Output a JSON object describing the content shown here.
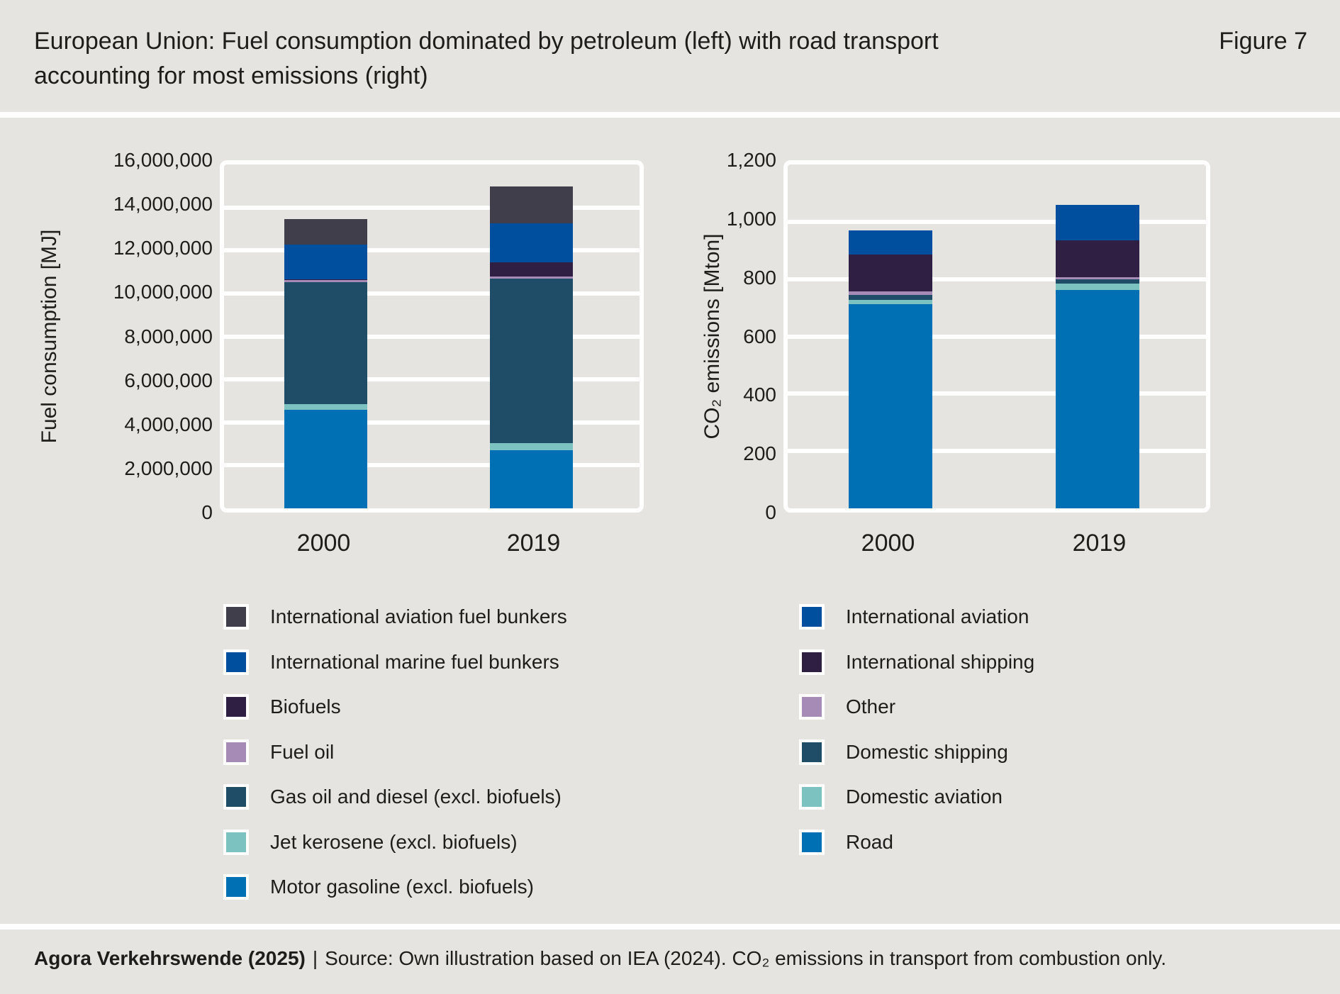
{
  "header": {
    "title": "European Union: Fuel consumption dominated by petroleum (left) with road transport\naccounting for most emissions (right)",
    "figure_label": "Figure 7"
  },
  "footer": {
    "brand": "Agora Verkehrswende (2025)",
    "divider": "|",
    "source": "Source: Own illustration based on IEA (2024). CO₂ emissions in transport from combustion only."
  },
  "colors": {
    "background": "#e5e4e0",
    "text": "#1d1d1b",
    "gridline": "#ffffff"
  },
  "chart_data": [
    {
      "type": "bar",
      "stacked": true,
      "title": "",
      "xlabel": "",
      "ylabel": "Fuel consumption [MJ]",
      "categories": [
        "2000",
        "2019"
      ],
      "ylim": [
        0,
        16000000
      ],
      "grid": true,
      "legend_position": "bottom",
      "ytick_values": [
        0,
        2000000,
        4000000,
        6000000,
        8000000,
        10000000,
        12000000,
        14000000,
        16000000
      ],
      "ytick_labels": [
        "0",
        "2,000,000",
        "4,000,000",
        "6,000,000",
        "8,000,000",
        "10,000,000",
        "12,000,000",
        "14,000,000",
        "16,000,000"
      ],
      "series": [
        {
          "name": "Motor gasoline (excl. biofuels)",
          "color": "#0070b5",
          "values": [
            4570000,
            2710000
          ]
        },
        {
          "name": "Jet kerosene (excl. biofuels)",
          "color": "#7cc2c0",
          "values": [
            290000,
            330000
          ]
        },
        {
          "name": "Gas oil and diesel (excl. biofuels)",
          "color": "#1f4c66",
          "values": [
            5660000,
            7660000
          ]
        },
        {
          "name": "Fuel oil",
          "color": "#a58bb5",
          "values": [
            100000,
            80000
          ]
        },
        {
          "name": "Biofuels",
          "color": "#2f1f42",
          "values": [
            30000,
            680000
          ]
        },
        {
          "name": "International marine fuel bunkers",
          "color": "#004f9e",
          "values": [
            1610000,
            1800000
          ]
        },
        {
          "name": "International aviation fuel bunkers",
          "color": "#413e4c",
          "values": [
            1190000,
            1720000
          ]
        }
      ],
      "totals": [
        13450000,
        14980000
      ]
    },
    {
      "type": "bar",
      "stacked": true,
      "title": "",
      "xlabel": "",
      "ylabel": "CO₂ emissions [Mton]",
      "categories": [
        "2000",
        "2019"
      ],
      "ylim": [
        0,
        1200
      ],
      "grid": true,
      "legend_position": "bottom",
      "ytick_values": [
        0,
        200,
        400,
        600,
        800,
        1000,
        1200
      ],
      "ytick_labels": [
        "0",
        "200",
        "400",
        "600",
        "800",
        "1,000",
        "1,200"
      ],
      "series": [
        {
          "name": "Road",
          "color": "#0070b5",
          "values": [
            712,
            762
          ]
        },
        {
          "name": "Domestic aviation",
          "color": "#7cc2c0",
          "values": [
            15,
            23
          ]
        },
        {
          "name": "Domestic shipping",
          "color": "#1f4c66",
          "values": [
            18,
            15
          ]
        },
        {
          "name": "Other",
          "color": "#a58bb5",
          "values": [
            12,
            6
          ]
        },
        {
          "name": "International shipping",
          "color": "#2f1f42",
          "values": [
            128,
            129
          ]
        },
        {
          "name": "International aviation",
          "color": "#004f9e",
          "values": [
            85,
            125
          ]
        }
      ],
      "totals": [
        970,
        1060
      ]
    }
  ]
}
